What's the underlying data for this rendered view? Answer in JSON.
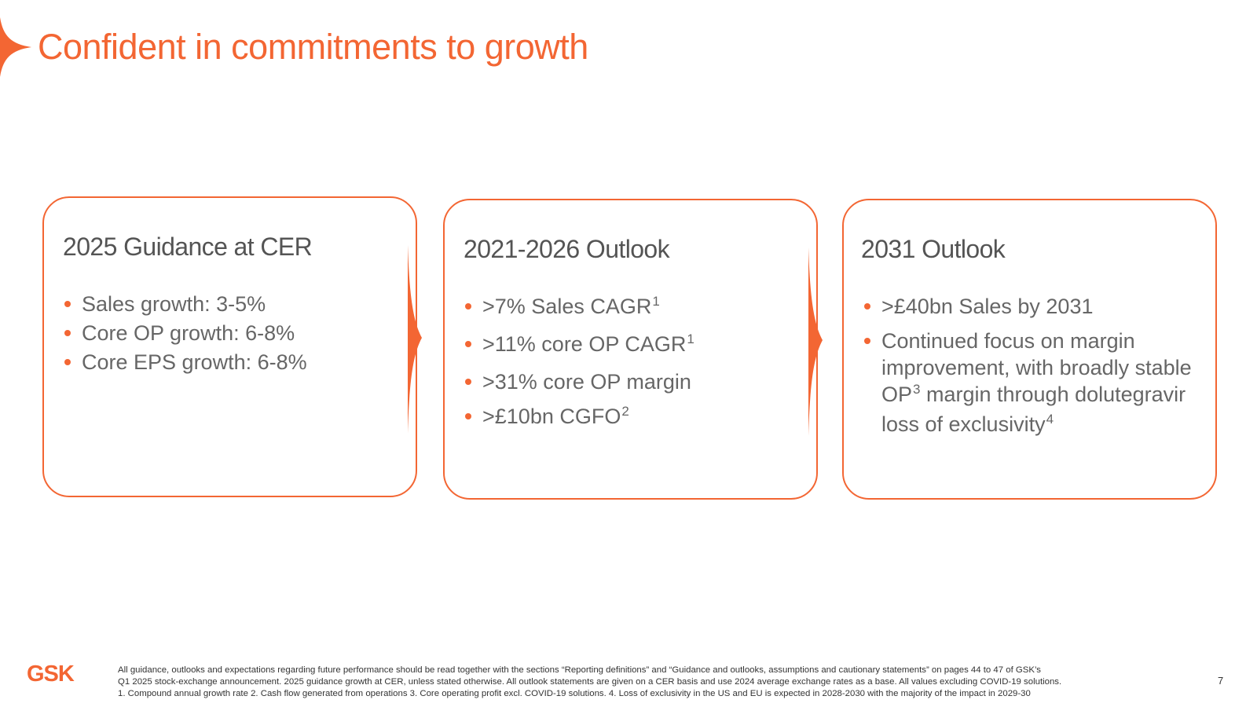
{
  "title": "Confident in commitments to growth",
  "colors": {
    "accent": "#f36633",
    "text": "#5a5a5a"
  },
  "cards": [
    {
      "heading": "2025 Guidance at CER",
      "bullets": [
        {
          "text": "Sales growth: 3-5%",
          "sup": ""
        },
        {
          "text": "Core OP growth: 6-8%",
          "sup": ""
        },
        {
          "text": "Core EPS growth: 6-8%",
          "sup": ""
        }
      ]
    },
    {
      "heading": "2021-2026 Outlook",
      "bullets": [
        {
          "text": ">7% Sales CAGR",
          "sup": "1"
        },
        {
          "text": ">11% core OP CAGR",
          "sup": "1"
        },
        {
          "text": ">31% core OP margin",
          "sup": ""
        },
        {
          "text": ">£10bn CGFO",
          "sup": "2"
        }
      ]
    },
    {
      "heading": "2031 Outlook",
      "bullets": [
        {
          "text": ">£40bn Sales by 2031",
          "sup": ""
        },
        {
          "text_a": "Continued focus on margin improvement, with broadly stable OP",
          "sup_a": "3",
          "text_b": " margin through dolutegravir loss of exclusivity",
          "sup_b": "4"
        }
      ]
    }
  ],
  "footer": {
    "logo_text": "GSK",
    "note_line1": "All guidance, outlooks and expectations regarding future performance should be read together with the sections “Reporting definitions” and “Guidance and outlooks, assumptions and cautionary statements” on pages 44 to 47 of GSK’s",
    "note_line2": "Q1 2025 stock-exchange announcement. 2025 guidance growth at CER, unless stated otherwise.  All outlook statements are given on a CER basis and use 2024 average exchange rates as a base. All values excluding COVID-19 solutions.",
    "note_line3": " 1. Compound annual growth rate  2. Cash flow generated from operations  3. Core operating profit excl. COVID-19 solutions.  4. Loss of exclusivity in the US and EU is expected in 2028-2030 with the majority of the impact in 2029-30",
    "page_number": "7"
  }
}
